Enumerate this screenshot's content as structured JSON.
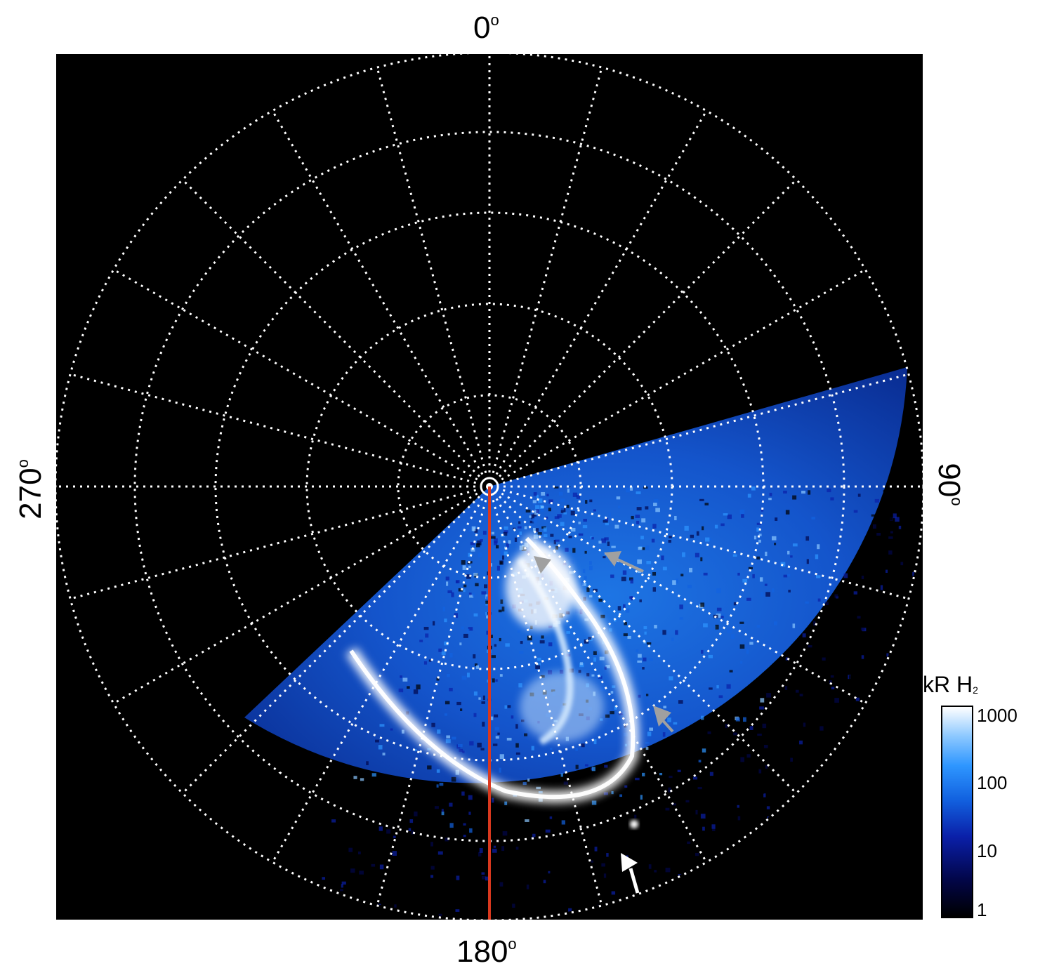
{
  "axes": {
    "top_label": "0",
    "bottom_label": "180",
    "left_label": "270",
    "right_label": "90",
    "degree_symbol": "o"
  },
  "colorbar": {
    "unit": "kR H",
    "unit_subscript": "2",
    "ticks": [
      "1000",
      "100",
      "10",
      "1"
    ],
    "colors_low_to_high": [
      "#000000",
      "#02064a",
      "#0a1fa8",
      "#1262e0",
      "#2e96ff",
      "#8cc8ff",
      "#ffffff"
    ]
  },
  "colors": {
    "background": "#000000",
    "grid": "#ffffff",
    "meridian_line": "#d9381e",
    "arrow_gray": "#a0a0a0",
    "arrow_white": "#ffffff"
  },
  "icons": [
    "arrow-pointer-icon",
    "arrow-pointer-icon",
    "arrow-pointer-icon",
    "arrow-pointer-icon"
  ]
}
